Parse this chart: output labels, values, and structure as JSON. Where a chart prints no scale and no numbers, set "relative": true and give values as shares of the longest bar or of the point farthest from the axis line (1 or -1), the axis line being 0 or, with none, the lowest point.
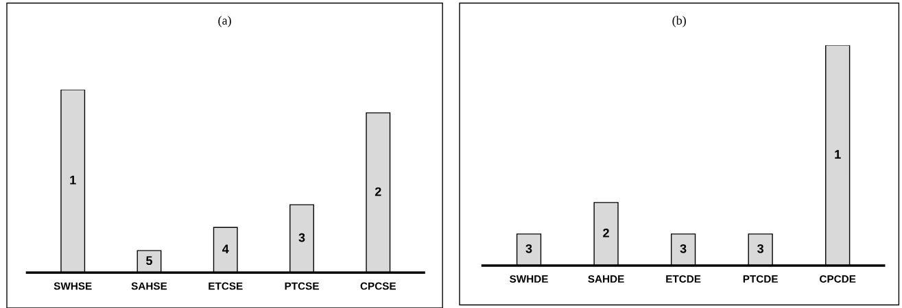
{
  "chart_data": [
    {
      "type": "bar",
      "title": "(a)",
      "relative": true,
      "categories": [
        "SWHSE",
        "SAHSE",
        "ETCSE",
        "PTCSE",
        "CPCSE"
      ],
      "values": [
        1,
        0.12,
        0.247,
        0.371,
        0.873
      ],
      "color": "#d9d9d9",
      "annotations": [
        "1",
        "5",
        "4",
        "3",
        "2"
      ]
    },
    {
      "type": "bar",
      "title": "(b)",
      "relative": true,
      "categories": [
        "SWHDE",
        "SAHDE",
        "ETCDE",
        "PTCDE",
        "CPCDE"
      ],
      "values": [
        0.143,
        0.286,
        0.143,
        0.143,
        1
      ],
      "color": "#d9d9d9",
      "annotations": [
        "3",
        "2",
        "3",
        "3",
        "1"
      ]
    }
  ]
}
